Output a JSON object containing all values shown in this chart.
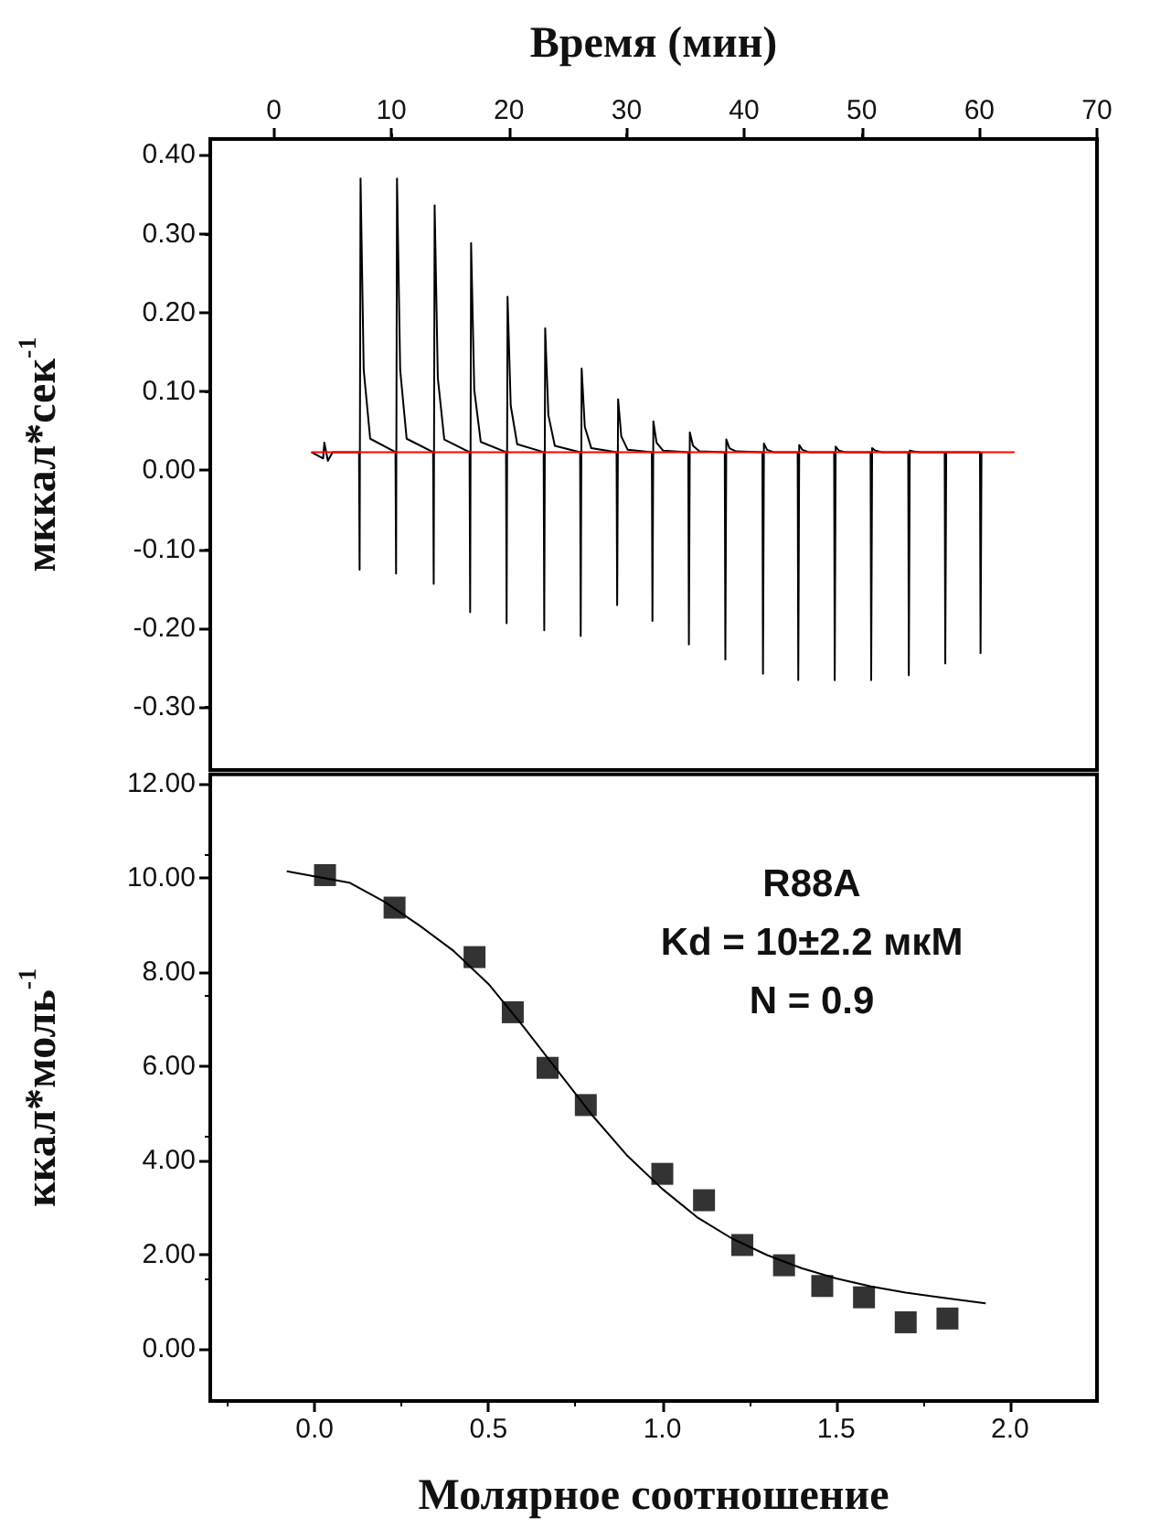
{
  "chart_data": [
    {
      "type": "line",
      "xlabel": "Время (мин)",
      "ylabel": "мккал*сек$^{-1}$",
      "xlim": [
        -5.4,
        70
      ],
      "xticks": [
        0,
        10,
        20,
        30,
        40,
        50,
        60,
        70
      ],
      "ylim": [
        -0.38,
        0.42
      ],
      "yticks": [
        {
          "value": 0.4,
          "label": "0.40"
        },
        {
          "value": 0.3,
          "label": "0.30"
        },
        {
          "value": 0.2,
          "label": "0.20"
        },
        {
          "value": 0.1,
          "label": "0.10"
        },
        {
          "value": 0,
          "label": "0.00"
        },
        {
          "value": -0.1,
          "label": "-0.10"
        },
        {
          "value": -0.2,
          "label": "-0.20"
        },
        {
          "value": -0.3,
          "label": "-0.30"
        }
      ],
      "grid": false,
      "marker": "none",
      "series": [
        {
          "color": "#000000",
          "x": [
            3.2,
            4.2,
            4.3,
            4.6,
            5.0,
            7.25,
            7.3,
            7.38,
            7.65,
            8.2,
            10.35,
            10.4,
            10.48,
            10.75,
            11.3,
            13.55,
            13.6,
            13.68,
            13.95,
            14.5,
            16.65,
            16.7,
            16.78,
            17.05,
            17.6,
            19.75,
            19.8,
            19.88,
            20.15,
            20.7,
            22.95,
            23.0,
            23.08,
            23.35,
            23.9,
            26.05,
            26.1,
            26.18,
            26.45,
            27.0,
            29.15,
            29.2,
            29.28,
            29.55,
            30.1,
            32.15,
            32.2,
            32.28,
            32.55,
            33.1,
            35.25,
            35.3,
            35.38,
            35.65,
            36.2,
            38.35,
            38.4,
            38.48,
            38.75,
            39.3,
            41.55,
            41.6,
            41.68,
            41.95,
            42.5,
            44.55,
            44.6,
            44.68,
            44.95,
            45.5,
            47.65,
            47.7,
            47.78,
            48.05,
            48.6,
            50.75,
            50.8,
            50.88,
            51.15,
            51.7,
            53.95,
            54.0,
            54.08,
            54.35,
            54.9,
            57.05,
            57.1,
            57.18,
            60.05,
            60.1,
            60.18
          ],
          "values": [
            0.023,
            0.015,
            0.035,
            0.012,
            0.023,
            0.023,
            -0.126,
            0.37,
            0.127,
            0.04,
            0.023,
            -0.131,
            0.37,
            0.127,
            0.04,
            0.023,
            -0.144,
            0.336,
            0.117,
            0.039,
            0.023,
            -0.18,
            0.288,
            0.102,
            0.036,
            0.023,
            -0.194,
            0.22,
            0.082,
            0.033,
            0.023,
            -0.203,
            0.18,
            0.07,
            0.031,
            0.023,
            -0.21,
            0.129,
            0.055,
            0.028,
            0.023,
            -0.171,
            0.09,
            0.043,
            0.026,
            0.023,
            -0.191,
            0.062,
            0.035,
            0.025,
            0.023,
            -0.221,
            0.048,
            0.031,
            0.024,
            0.023,
            -0.24,
            0.039,
            0.028,
            0.024,
            0.023,
            -0.258,
            0.034,
            0.026,
            0.023,
            0.023,
            -0.266,
            0.032,
            0.026,
            0.023,
            0.023,
            -0.266,
            0.03,
            0.025,
            0.023,
            0.023,
            -0.266,
            0.028,
            0.025,
            0.023,
            0.023,
            -0.26,
            0.025,
            0.024,
            0.023,
            0.023,
            -0.245,
            0.023,
            0.023,
            -0.232,
            0.023
          ]
        },
        {
          "color": "#ff0000",
          "x": [
            3.2,
            63
          ],
          "values": [
            0.023,
            0.023
          ]
        }
      ]
    },
    {
      "type": "scatter",
      "xlabel": "Молярное соотношение",
      "ylabel": "ккал*моль$^{-1}$",
      "xlim": [
        -0.3,
        2.25
      ],
      "xticks": [
        {
          "value": 0,
          "label": "0.0"
        },
        {
          "value": 0.5,
          "label": "0.5"
        },
        {
          "value": 1,
          "label": "1.0"
        },
        {
          "value": 1.5,
          "label": "1.5"
        },
        {
          "value": 2,
          "label": "2.0"
        }
      ],
      "ylim": [
        -1.1,
        12.2
      ],
      "yticks": [
        {
          "value": 0,
          "label": "0.00"
        },
        {
          "value": 2,
          "label": "2.00"
        },
        {
          "value": 4,
          "label": "4.00"
        },
        {
          "value": 6,
          "label": "6.00"
        },
        {
          "value": 8,
          "label": "8.00"
        },
        {
          "value": 10,
          "label": "10.00"
        },
        {
          "value": 12,
          "label": "12.00"
        }
      ],
      "grid": false,
      "marker": "square",
      "annotations": [
        "R88A",
        "Kd = 10±2.2 мкМ",
        "N = 0.9"
      ],
      "series": [
        {
          "color": "#000000",
          "x": [
            0.03,
            0.23,
            0.46,
            0.57,
            0.67,
            0.78,
            1.0,
            1.12,
            1.23,
            1.35,
            1.46,
            1.58,
            1.7,
            1.82
          ],
          "values": [
            10.06,
            9.37,
            8.32,
            7.15,
            5.97,
            5.18,
            3.72,
            3.16,
            2.21,
            1.78,
            1.34,
            1.1,
            0.57,
            0.65
          ]
        },
        {
          "type": "line",
          "marker": "none",
          "color": "#000000",
          "x": [
            -0.08,
            0.1,
            0.2,
            0.3,
            0.4,
            0.5,
            0.6,
            0.7,
            0.8,
            0.9,
            1.0,
            1.1,
            1.2,
            1.3,
            1.4,
            1.5,
            1.6,
            1.7,
            1.8,
            1.93
          ],
          "values": [
            10.14,
            9.9,
            9.5,
            9.0,
            8.45,
            7.75,
            6.85,
            5.9,
            4.95,
            4.1,
            3.4,
            2.8,
            2.35,
            2.0,
            1.72,
            1.5,
            1.33,
            1.2,
            1.1,
            0.97
          ]
        }
      ]
    }
  ]
}
